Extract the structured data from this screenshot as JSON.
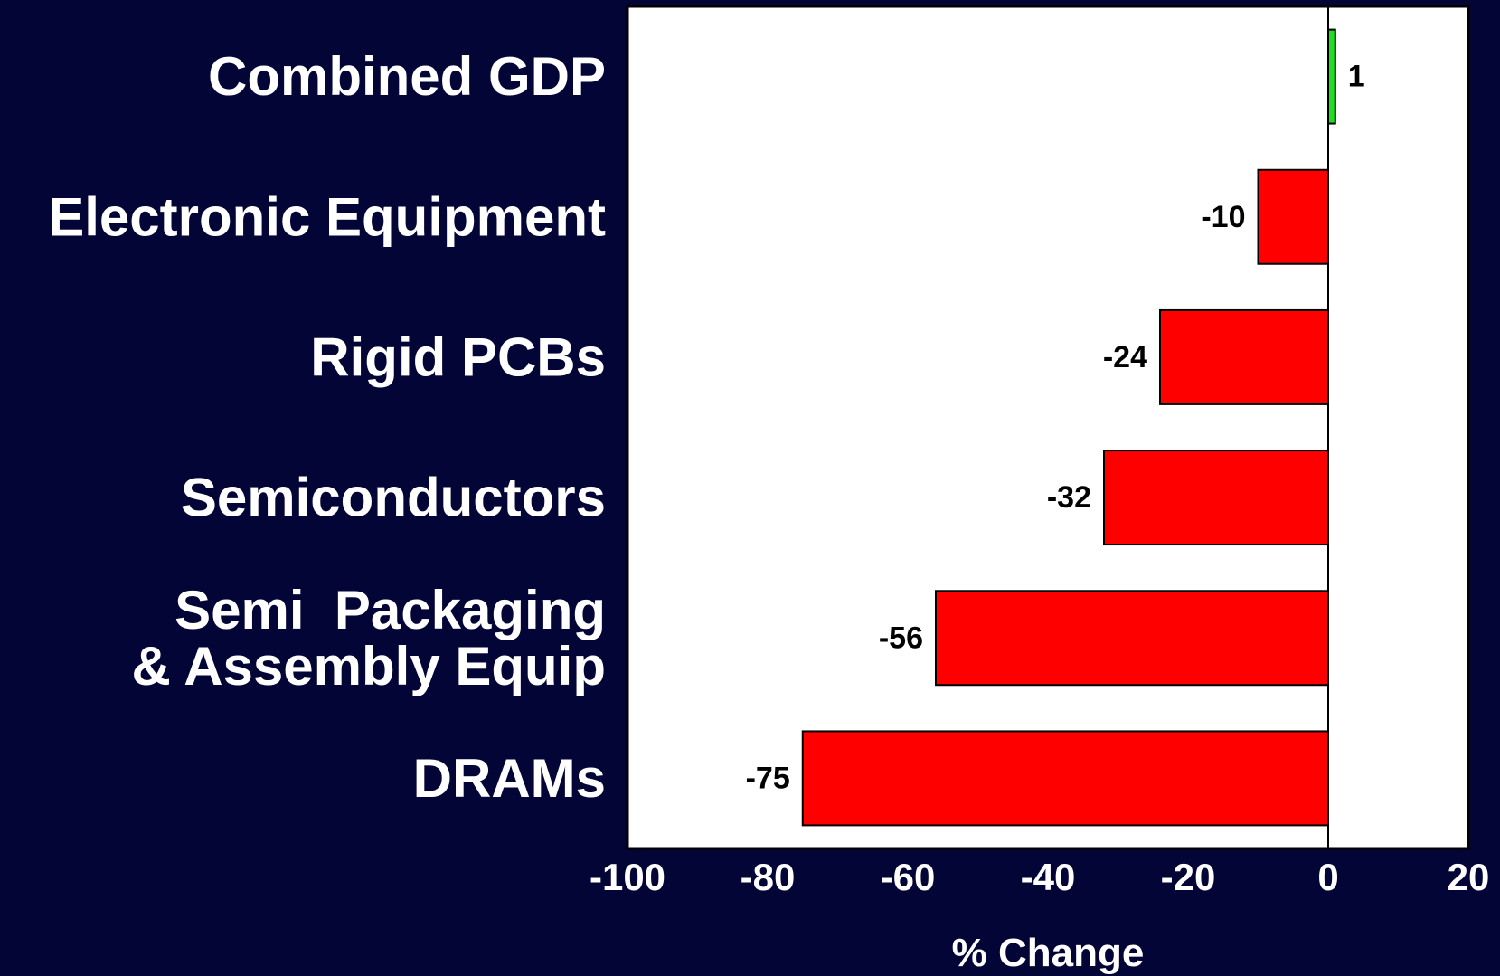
{
  "colors": {
    "background": "#030536",
    "plot_area": "#ffffff",
    "negative_bar": "#ff0000",
    "positive_bar": "#22dd22",
    "text": "#ffffff",
    "data_label": "#000000"
  },
  "chart_data": {
    "type": "bar",
    "orientation": "horizontal",
    "categories": [
      [
        "Combined GDP"
      ],
      [
        "Electronic Equipment"
      ],
      [
        "Rigid PCBs"
      ],
      [
        "Semiconductors"
      ],
      [
        "Semi  Packaging",
        "& Assembly Equip"
      ],
      [
        "DRAMs"
      ]
    ],
    "values": [
      1,
      -10,
      -24,
      -32,
      -56,
      -75
    ],
    "value_labels": [
      "1",
      "-10",
      "-24",
      "-32",
      "-56",
      "-75"
    ],
    "title": "",
    "xlabel": "% Change",
    "ylabel": "",
    "xlim": [
      -100,
      20
    ],
    "xticks": [
      -100,
      -80,
      -60,
      -40,
      -20,
      0,
      20
    ],
    "xtick_labels": [
      "-100",
      "-80",
      "-60",
      "-40",
      "-20",
      "0",
      "20"
    ],
    "grid": false,
    "legend": "none"
  }
}
